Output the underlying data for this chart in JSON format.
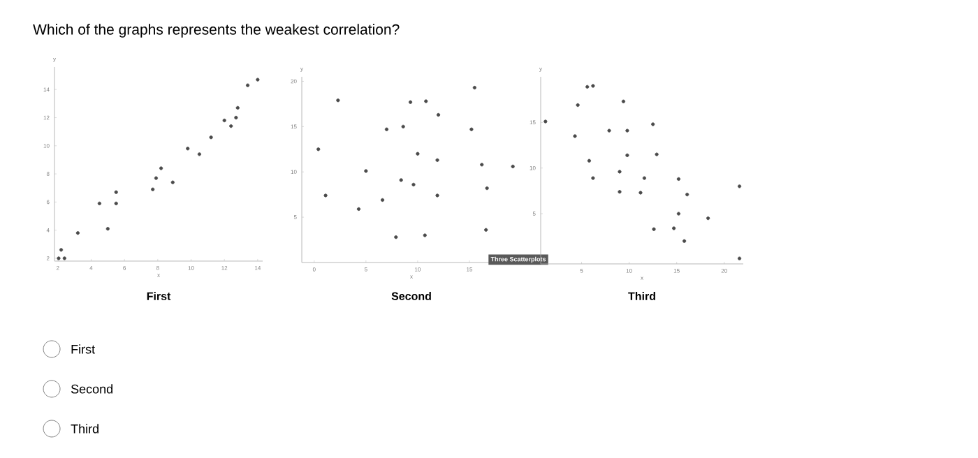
{
  "chart_data": [
    {
      "type": "scatter",
      "title": "Which of the graphs represents the weakest correlation?",
      "xlabel": "x",
      "ylabel": "y",
      "color": "#4a4a4a",
      "xlim": [
        1.8,
        14.3
      ],
      "ylim": [
        1.8,
        15.6
      ],
      "xticks": [
        2,
        4,
        6,
        8,
        10,
        12,
        14
      ],
      "yticks": [
        2,
        4,
        6,
        8,
        10,
        12,
        14
      ],
      "x": [
        2.05,
        2.2,
        2.4,
        3.2,
        4.5,
        5.0,
        5.5,
        5.5,
        7.7,
        7.9,
        8.2,
        8.9,
        9.8,
        10.5,
        11.2,
        12.0,
        12.4,
        12.7,
        12.8,
        13.4,
        14.0
      ],
      "values": [
        2.0,
        2.6,
        2.0,
        3.8,
        5.9,
        4.1,
        5.9,
        6.7,
        6.9,
        7.7,
        8.4,
        7.4,
        9.8,
        9.4,
        10.6,
        11.8,
        11.4,
        12.0,
        12.7,
        14.3,
        14.7
      ],
      "annotations": [
        "First"
      ]
    },
    {
      "type": "scatter",
      "xlabel": "x",
      "ylabel": "y",
      "color": "#4a4a4a",
      "xlim": [
        -1.2,
        20
      ],
      "ylim": [
        0,
        20.5
      ],
      "xticks": [
        0,
        5,
        10,
        15
      ],
      "yticks": [
        5,
        10,
        15,
        20
      ],
      "x": [
        1.1,
        0.4,
        2.3,
        4.3,
        5.0,
        6.6,
        7.0,
        7.9,
        8.4,
        8.6,
        9.3,
        9.6,
        10.0,
        10.7,
        10.8,
        11.9,
        11.9,
        12.0,
        15.2,
        15.5,
        16.2,
        16.7,
        16.6,
        19.2
      ],
      "values": [
        7.4,
        12.5,
        17.9,
        5.9,
        10.1,
        6.9,
        14.7,
        2.8,
        9.1,
        15.0,
        17.7,
        8.6,
        12.0,
        3.0,
        17.8,
        11.3,
        7.4,
        16.3,
        14.7,
        19.3,
        10.8,
        8.2,
        3.6,
        10.6
      ],
      "annotations": [
        "Second",
        "Three Scatterplots"
      ]
    },
    {
      "type": "scatter",
      "xlabel": "x",
      "ylabel": "y",
      "color": "#4a4a4a",
      "xlim": [
        0.7,
        22
      ],
      "ylim": [
        -0.5,
        20
      ],
      "xticks": [
        5,
        10,
        15,
        20
      ],
      "yticks": [
        5,
        10,
        15
      ],
      "x": [
        1.2,
        4.3,
        4.6,
        5.6,
        6.2,
        5.8,
        6.2,
        7.9,
        9.0,
        9.0,
        9.4,
        9.8,
        9.8,
        11.2,
        11.6,
        12.5,
        12.9,
        12.6,
        14.7,
        15.2,
        15.2,
        16.1,
        15.8,
        18.3,
        21.6,
        21.6
      ],
      "values": [
        15.1,
        13.5,
        16.9,
        18.9,
        19.0,
        10.8,
        8.9,
        14.1,
        9.6,
        7.4,
        17.3,
        14.1,
        11.4,
        7.3,
        8.9,
        14.8,
        11.5,
        3.3,
        3.4,
        8.8,
        5.0,
        7.1,
        2.0,
        4.5,
        8.0,
        0.1
      ],
      "annotations": [
        "Third"
      ]
    },
    {
      "type": "other",
      "annotations": [
        "First",
        "Second",
        "Third"
      ]
    }
  ]
}
